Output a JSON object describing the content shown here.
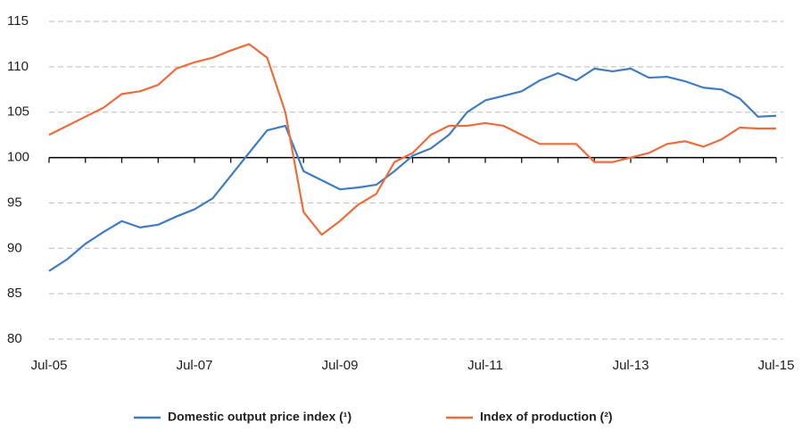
{
  "chart_data": {
    "type": "line",
    "categories": [
      "Jul-05",
      null,
      null,
      null,
      null,
      null,
      null,
      null,
      "Jul-07",
      null,
      null,
      null,
      null,
      null,
      null,
      null,
      "Jul-09",
      null,
      null,
      null,
      null,
      null,
      null,
      null,
      "Jul-11",
      null,
      null,
      null,
      null,
      null,
      null,
      null,
      "Jul-13",
      null,
      null,
      null,
      null,
      null,
      null,
      null,
      "Jul-15"
    ],
    "series": [
      {
        "name": "Domestic output price index (¹)",
        "color": "#3f7cc4",
        "values": [
          87.5,
          88.8,
          90.5,
          91.8,
          93.0,
          92.3,
          92.6,
          93.5,
          94.3,
          95.5,
          98.0,
          100.5,
          103.0,
          103.5,
          98.5,
          97.5,
          96.5,
          96.7,
          97.0,
          98.5,
          100.2,
          101.0,
          102.5,
          105.0,
          106.3,
          106.8,
          107.3,
          108.5,
          109.3,
          108.5,
          109.8,
          109.5,
          109.8,
          108.8,
          108.9,
          108.4,
          107.7,
          107.5,
          106.5,
          104.5,
          104.6
        ]
      },
      {
        "name": "Index of production (²)",
        "color": "#ee6c3a",
        "values": [
          102.5,
          103.5,
          104.5,
          105.5,
          107.0,
          107.3,
          108.0,
          109.8,
          110.5,
          111.0,
          111.8,
          112.5,
          111.0,
          105.0,
          94.0,
          91.5,
          93.0,
          94.8,
          96.0,
          99.5,
          100.5,
          102.5,
          103.5,
          103.5,
          103.8,
          103.5,
          102.5,
          101.5,
          101.5,
          101.5,
          99.5,
          99.5,
          100.0,
          100.5,
          101.5,
          101.8,
          101.2,
          102.0,
          103.3,
          103.2,
          103.2
        ]
      }
    ],
    "ylim": [
      80,
      115
    ],
    "yticks": [
      80,
      85,
      90,
      95,
      100,
      105,
      110,
      115
    ],
    "grid": true,
    "baseline": 100,
    "legend": "bottom"
  }
}
